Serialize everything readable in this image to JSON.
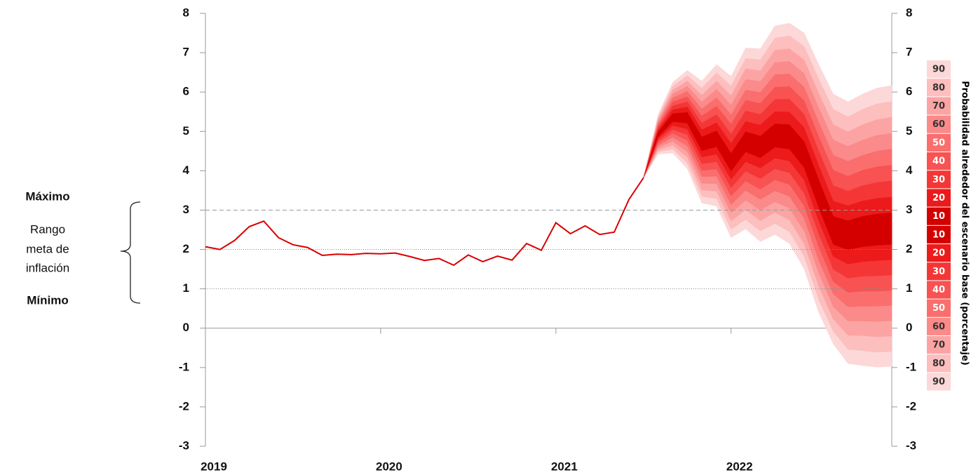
{
  "chart_data": {
    "type": "fan",
    "annotations": {
      "max": "Máximo",
      "range": [
        "Rango",
        "meta de",
        "inflación"
      ],
      "min": "Mínimo"
    },
    "y2label": "Probabilidad alrededor del escenario base (porcentaje)",
    "xlim": [
      2019,
      2022.917
    ],
    "xticks": [
      2019,
      2020,
      2021,
      2022
    ],
    "ylim": [
      -3,
      8
    ],
    "yticks": [
      -3,
      -2,
      -1,
      0,
      1,
      2,
      3,
      4,
      5,
      6,
      7,
      8
    ],
    "y2lim": [
      -3,
      8
    ],
    "y2ticks": [
      -3,
      -2,
      -1,
      0,
      1,
      2,
      3,
      4,
      5,
      6,
      7,
      8
    ],
    "reference_lines": [
      {
        "value": 3,
        "style": "dashed"
      },
      {
        "value": 2,
        "style": "dotted"
      },
      {
        "value": 1,
        "style": "dotted"
      }
    ],
    "line": {
      "color": "#d90000",
      "x": [
        2019,
        2019.083,
        2019.167,
        2019.25,
        2019.333,
        2019.417,
        2019.5,
        2019.583,
        2019.667,
        2019.75,
        2019.833,
        2019.917,
        2020,
        2020.083,
        2020.167,
        2020.25,
        2020.333,
        2020.417,
        2020.5,
        2020.583,
        2020.667,
        2020.75,
        2020.833,
        2020.917,
        2021,
        2021.083,
        2021.167,
        2021.25,
        2021.333,
        2021.417,
        2021.5
      ],
      "values": [
        2.07,
        2.0,
        2.23,
        2.58,
        2.72,
        2.3,
        2.12,
        2.05,
        1.85,
        1.88,
        1.87,
        1.9,
        1.89,
        1.91,
        1.82,
        1.72,
        1.77,
        1.6,
        1.86,
        1.69,
        1.83,
        1.73,
        2.15,
        1.98,
        2.68,
        2.4,
        2.6,
        2.38,
        2.44,
        3.27,
        3.82
      ]
    },
    "fan": {
      "x": [
        2021.5,
        2021.583,
        2021.667,
        2021.75,
        2021.833,
        2021.917,
        2022,
        2022.083,
        2022.167,
        2022.25,
        2022.333,
        2022.417,
        2022.5,
        2022.583,
        2022.667,
        2022.75,
        2022.833,
        2022.917
      ],
      "bands": [
        {
          "name": "10",
          "color": "#d40000",
          "upper": [
            3.82,
            4.98,
            5.45,
            5.48,
            4.86,
            5.01,
            4.44,
            4.99,
            4.88,
            5.19,
            5.17,
            4.74,
            3.77,
            2.84,
            2.73,
            2.84,
            2.9,
            2.93
          ],
          "lower": [
            3.82,
            4.86,
            5.25,
            5.21,
            4.51,
            4.61,
            3.99,
            4.48,
            4.33,
            4.6,
            4.55,
            4.08,
            3.07,
            2.13,
            1.99,
            2.07,
            2.11,
            2.13
          ]
        },
        {
          "name": "20",
          "color": "#ec1a1a",
          "upper": [
            3.82,
            5.03,
            5.55,
            5.62,
            5.04,
            5.22,
            4.69,
            5.25,
            5.16,
            5.5,
            5.49,
            5.09,
            4.13,
            3.23,
            3.11,
            3.23,
            3.3,
            3.33
          ],
          "lower": [
            3.82,
            4.81,
            5.15,
            5.06,
            4.35,
            4.42,
            3.78,
            4.23,
            4.07,
            4.32,
            4.25,
            3.76,
            2.73,
            1.82,
            1.63,
            1.69,
            1.72,
            1.74
          ]
        },
        {
          "name": "30",
          "color": "#f53636",
          "upper": [
            3.82,
            5.09,
            5.65,
            5.75,
            5.21,
            5.43,
            4.93,
            5.52,
            5.43,
            5.81,
            5.82,
            5.43,
            4.5,
            3.62,
            3.48,
            3.62,
            3.7,
            3.74
          ],
          "lower": [
            3.82,
            4.75,
            5.05,
            4.92,
            4.18,
            4.23,
            3.57,
            3.99,
            3.8,
            4.05,
            3.95,
            3.43,
            2.4,
            1.5,
            1.27,
            1.32,
            1.33,
            1.35
          ]
        },
        {
          "name": "40",
          "color": "#f85252",
          "upper": [
            3.82,
            5.14,
            5.75,
            5.88,
            5.39,
            5.64,
            5.18,
            5.79,
            5.71,
            6.12,
            6.14,
            5.78,
            4.87,
            4.01,
            3.86,
            4.01,
            4.1,
            4.14
          ],
          "lower": [
            3.82,
            4.7,
            4.95,
            4.77,
            4.01,
            4.04,
            3.36,
            3.74,
            3.53,
            3.77,
            3.65,
            3.11,
            2.07,
            1.18,
            0.91,
            0.94,
            0.94,
            0.96
          ]
        },
        {
          "name": "50",
          "color": "#fa6e6e",
          "upper": [
            3.82,
            5.2,
            5.85,
            6.02,
            5.57,
            5.86,
            5.42,
            6.05,
            5.99,
            6.44,
            6.46,
            6.12,
            5.23,
            4.39,
            4.24,
            4.39,
            4.5,
            4.55
          ],
          "lower": [
            3.82,
            4.64,
            4.85,
            4.63,
            3.85,
            3.86,
            3.14,
            3.5,
            3.27,
            3.49,
            3.35,
            2.79,
            1.73,
            0.87,
            0.54,
            0.56,
            0.56,
            0.58
          ]
        },
        {
          "name": "60",
          "color": "#fb8a8a",
          "upper": [
            3.82,
            5.25,
            5.95,
            6.15,
            5.75,
            6.07,
            5.67,
            6.32,
            6.27,
            6.75,
            6.78,
            6.47,
            5.6,
            4.78,
            4.62,
            4.78,
            4.9,
            4.95
          ],
          "lower": [
            3.82,
            4.59,
            4.75,
            4.48,
            3.68,
            3.67,
            2.93,
            3.25,
            3.0,
            3.21,
            3.05,
            2.47,
            1.4,
            0.55,
            0.18,
            0.18,
            0.17,
            0.19
          ]
        },
        {
          "name": "70",
          "color": "#fca4a4",
          "upper": [
            3.82,
            5.31,
            6.05,
            6.28,
            5.92,
            6.28,
            5.91,
            6.59,
            6.54,
            7.06,
            7.1,
            6.81,
            5.97,
            5.17,
            4.99,
            5.17,
            5.3,
            5.36
          ],
          "lower": [
            3.82,
            4.53,
            4.65,
            4.34,
            3.51,
            3.48,
            2.72,
            3.01,
            2.73,
            2.94,
            2.75,
            2.14,
            1.07,
            0.23,
            -0.18,
            -0.19,
            -0.22,
            -0.2
          ]
        },
        {
          "name": "80",
          "color": "#fdbebe",
          "upper": [
            3.82,
            5.36,
            6.15,
            6.42,
            6.1,
            6.49,
            6.16,
            6.85,
            6.82,
            7.37,
            7.43,
            7.16,
            6.33,
            5.56,
            5.37,
            5.56,
            5.7,
            5.76
          ],
          "lower": [
            3.82,
            4.48,
            4.55,
            4.19,
            3.35,
            3.29,
            2.51,
            2.76,
            2.47,
            2.66,
            2.45,
            1.82,
            0.73,
            -0.08,
            -0.54,
            -0.57,
            -0.61,
            -0.59
          ]
        },
        {
          "name": "90",
          "color": "#fdd8d8",
          "upper": [
            3.82,
            5.42,
            6.25,
            6.55,
            6.28,
            6.7,
            6.4,
            7.12,
            7.1,
            7.68,
            7.75,
            7.5,
            6.7,
            5.95,
            5.75,
            5.95,
            6.1,
            6.17
          ],
          "lower": [
            3.82,
            4.42,
            4.45,
            4.05,
            3.18,
            3.1,
            2.3,
            2.52,
            2.2,
            2.38,
            2.15,
            1.5,
            0.4,
            -0.4,
            -0.9,
            -0.95,
            -0.99,
            -0.97
          ]
        }
      ]
    }
  }
}
